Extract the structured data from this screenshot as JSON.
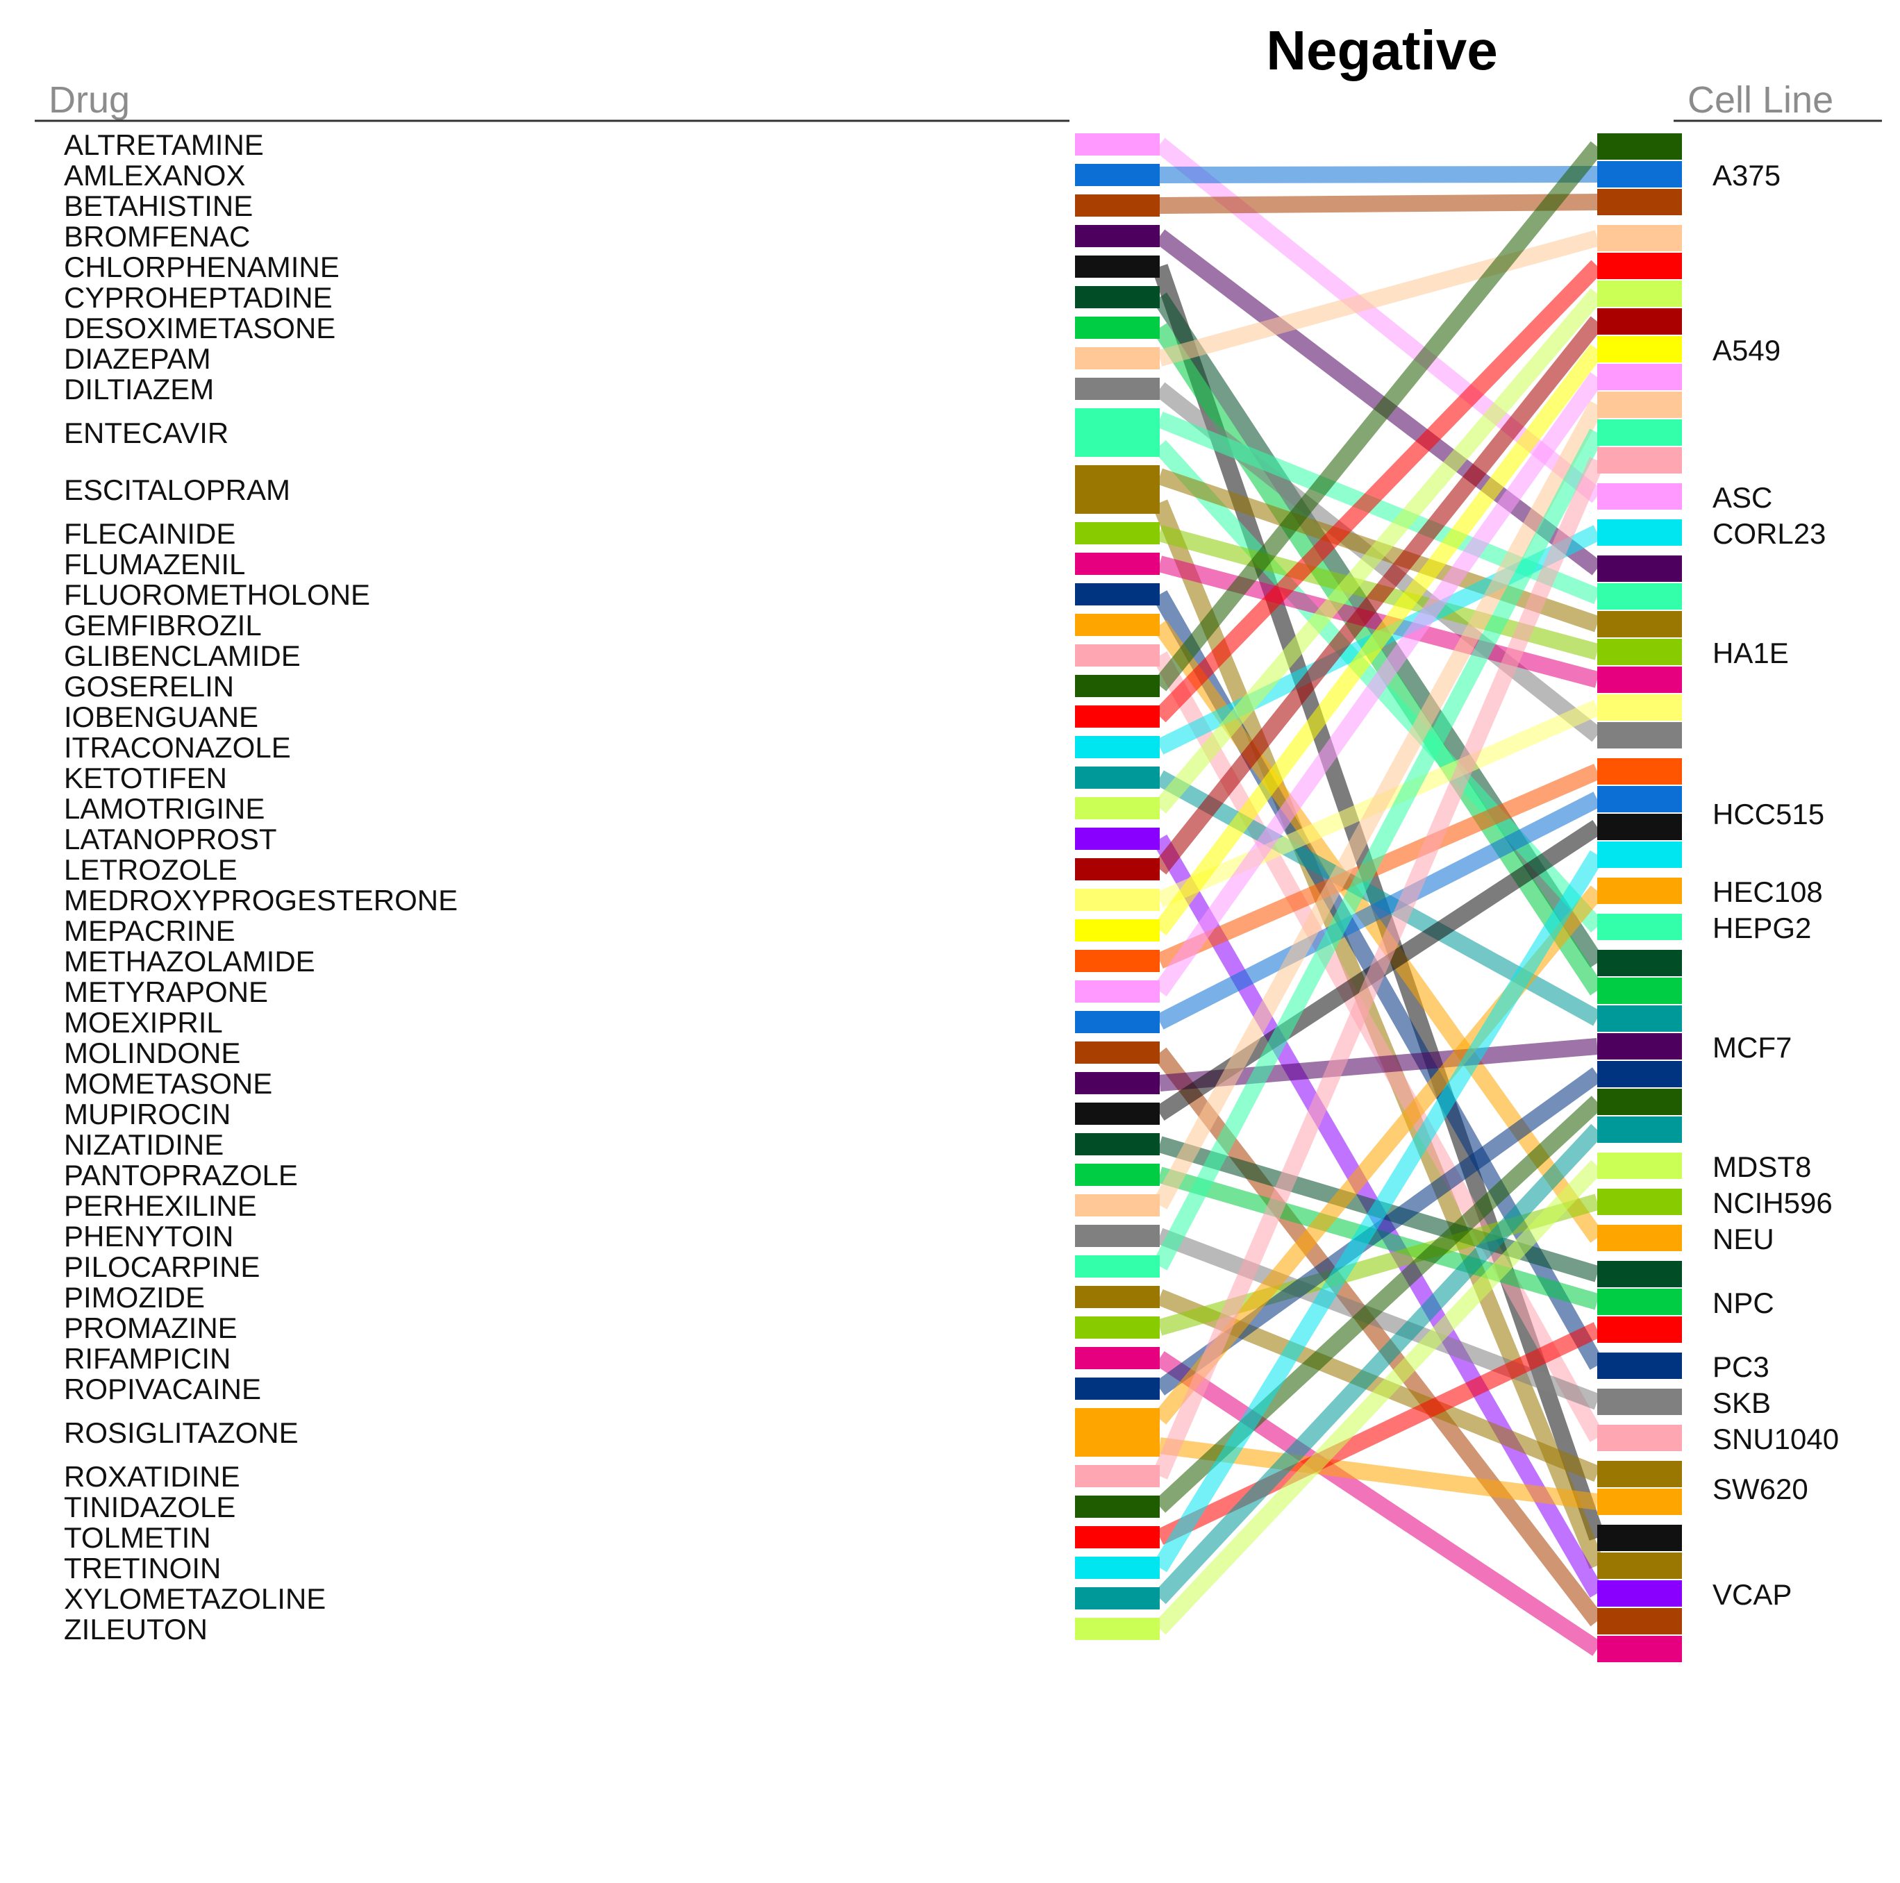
{
  "chart_data": {
    "type": "bipartite",
    "title": "Negative",
    "left_header": "Drug",
    "right_header": "Cell Line",
    "drugs": [
      {
        "name": "ALTRETAMINE",
        "color": "#ff99ff"
      },
      {
        "name": "AMLEXANOX",
        "color": "#0b6fd6"
      },
      {
        "name": "BETAHISTINE",
        "color": "#a93f00"
      },
      {
        "name": "BROMFENAC",
        "color": "#4e005e"
      },
      {
        "name": "CHLORPHENAMINE",
        "color": "#111111"
      },
      {
        "name": "CYPROHEPTADINE",
        "color": "#004d26"
      },
      {
        "name": "DESOXIMETASONE",
        "color": "#00cc44"
      },
      {
        "name": "DIAZEPAM",
        "color": "#ffc896"
      },
      {
        "name": "DILTIAZEM",
        "color": "#808080"
      },
      {
        "name": "ENTECAVIR",
        "color": "#33ffaa"
      },
      {
        "name": "ESCITALOPRAM",
        "color": "#997700"
      },
      {
        "name": "FLECAINIDE",
        "color": "#88cc00"
      },
      {
        "name": "FLUMAZENIL",
        "color": "#e60080"
      },
      {
        "name": "FLUOROMETHOLONE",
        "color": "#003380"
      },
      {
        "name": "GEMFIBROZIL",
        "color": "#ffa500"
      },
      {
        "name": "GLIBENCLAMIDE",
        "color": "#ffa6b3"
      },
      {
        "name": "GOSERELIN",
        "color": "#1f5c00"
      },
      {
        "name": "IOBENGUANE",
        "color": "#ff0000"
      },
      {
        "name": "ITRACONAZOLE",
        "color": "#00e6f0"
      },
      {
        "name": "KETOTIFEN",
        "color": "#009999"
      },
      {
        "name": "LAMOTRIGINE",
        "color": "#ccff55"
      },
      {
        "name": "LATANOPROST",
        "color": "#8a00ff"
      },
      {
        "name": "LETROZOLE",
        "color": "#aa0000"
      },
      {
        "name": "MEDROXYPROGESTERONE",
        "color": "#ffff70"
      },
      {
        "name": "MEPACRINE",
        "color": "#ffff00"
      },
      {
        "name": "METHAZOLAMIDE",
        "color": "#ff5500"
      },
      {
        "name": "METYRAPONE",
        "color": "#ff99ff"
      },
      {
        "name": "MOEXIPRIL",
        "color": "#0b6fd6"
      },
      {
        "name": "MOLINDONE",
        "color": "#a93f00"
      },
      {
        "name": "MOMETASONE",
        "color": "#4e005e"
      },
      {
        "name": "MUPIROCIN",
        "color": "#111111"
      },
      {
        "name": "NIZATIDINE",
        "color": "#004d26"
      },
      {
        "name": "PANTOPRAZOLE",
        "color": "#00cc44"
      },
      {
        "name": "PERHEXILINE",
        "color": "#ffc896"
      },
      {
        "name": "PHENYTOIN",
        "color": "#808080"
      },
      {
        "name": "PILOCARPINE",
        "color": "#33ffaa"
      },
      {
        "name": "PIMOZIDE",
        "color": "#997700"
      },
      {
        "name": "PROMAZINE",
        "color": "#88cc00"
      },
      {
        "name": "RIFAMPICIN",
        "color": "#e60080"
      },
      {
        "name": "ROPIVACAINE",
        "color": "#003380"
      },
      {
        "name": "ROSIGLITAZONE",
        "color": "#ffa500"
      },
      {
        "name": "ROXATIDINE",
        "color": "#ffa6b3"
      },
      {
        "name": "TINIDAZOLE",
        "color": "#1f5c00"
      },
      {
        "name": "TOLMETIN",
        "color": "#ff0000"
      },
      {
        "name": "TRETINOIN",
        "color": "#00e6f0"
      },
      {
        "name": "XYLOMETAZOLINE",
        "color": "#009999"
      },
      {
        "name": "ZILEUTON",
        "color": "#ccff55"
      }
    ],
    "cell_lines": [
      {
        "name": "A375",
        "segments": [
          "GOSERELIN",
          "AMLEXANOX",
          "BETAHISTINE"
        ]
      },
      {
        "name": "A549",
        "segments": [
          "DIAZEPAM",
          "IOBENGUANE",
          "LAMOTRIGINE",
          "LETROZOLE",
          "MEPACRINE",
          "METYRAPONE",
          "PERHEXILINE",
          "PILOCARPINE",
          "ROXATIDINE"
        ]
      },
      {
        "name": "ASC",
        "segments": [
          "ALTRETAMINE"
        ]
      },
      {
        "name": "CORL23",
        "segments": [
          "ITRACONAZOLE"
        ]
      },
      {
        "name": "HA1E",
        "segments": [
          "BROMFENAC",
          "ENTECAVIR",
          "ESCITALOPRAM",
          "FLECAINIDE",
          "FLUMAZENIL",
          "MEDROXYPROGESTERONE",
          "DILTIAZEM"
        ]
      },
      {
        "name": "HCC515",
        "segments": [
          "METHAZOLAMIDE",
          "MOEXIPRIL",
          "MUPIROCIN",
          "TRETINOIN"
        ]
      },
      {
        "name": "HEC108",
        "segments": [
          "ROSIGLITAZONE"
        ]
      },
      {
        "name": "HEPG2",
        "segments": [
          "ENTECAVIR"
        ]
      },
      {
        "name": "MCF7",
        "segments": [
          "CYPROHEPTADINE",
          "DESOXIMETASONE",
          "KETOTIFEN",
          "MOMETASONE",
          "ROPIVACAINE",
          "TINIDAZOLE",
          "XYLOMETAZOLINE"
        ]
      },
      {
        "name": "MDST8",
        "segments": [
          "ZILEUTON"
        ]
      },
      {
        "name": "NCIH596",
        "segments": [
          "PROMAZINE"
        ]
      },
      {
        "name": "NEU",
        "segments": [
          "GEMFIBROZIL"
        ]
      },
      {
        "name": "NPC",
        "segments": [
          "NIZATIDINE",
          "PANTOPRAZOLE",
          "TOLMETIN"
        ]
      },
      {
        "name": "PC3",
        "segments": [
          "FLUOROMETHOLONE"
        ]
      },
      {
        "name": "SKB",
        "segments": [
          "PHENYTOIN"
        ]
      },
      {
        "name": "SNU1040",
        "segments": [
          "GLIBENCLAMIDE"
        ]
      },
      {
        "name": "SW620",
        "segments": [
          "PIMOZIDE",
          "ROSIGLITAZONE"
        ]
      },
      {
        "name": "VCAP",
        "segments": [
          "CHLORPHENAMINE",
          "ESCITALOPRAM",
          "LATANOPROST",
          "MOLINDONE",
          "RIFAMPICIN"
        ]
      }
    ],
    "links": [
      [
        "ALTRETAMINE",
        "ASC"
      ],
      [
        "AMLEXANOX",
        "A375"
      ],
      [
        "BETAHISTINE",
        "A375"
      ],
      [
        "BROMFENAC",
        "HA1E"
      ],
      [
        "CHLORPHENAMINE",
        "VCAP"
      ],
      [
        "CYPROHEPTADINE",
        "MCF7"
      ],
      [
        "DESOXIMETASONE",
        "MCF7"
      ],
      [
        "DIAZEPAM",
        "A549"
      ],
      [
        "DILTIAZEM",
        "HA1E"
      ],
      [
        "ENTECAVIR",
        "HA1E"
      ],
      [
        "ENTECAVIR",
        "HEPG2"
      ],
      [
        "ESCITALOPRAM",
        "HA1E"
      ],
      [
        "ESCITALOPRAM",
        "VCAP"
      ],
      [
        "FLECAINIDE",
        "HA1E"
      ],
      [
        "FLUMAZENIL",
        "HA1E"
      ],
      [
        "FLUOROMETHOLONE",
        "PC3"
      ],
      [
        "GEMFIBROZIL",
        "NEU"
      ],
      [
        "GLIBENCLAMIDE",
        "SNU1040"
      ],
      [
        "GOSERELIN",
        "A375"
      ],
      [
        "IOBENGUANE",
        "A549"
      ],
      [
        "ITRACONAZOLE",
        "CORL23"
      ],
      [
        "KETOTIFEN",
        "MCF7"
      ],
      [
        "LAMOTRIGINE",
        "A549"
      ],
      [
        "LATANOPROST",
        "VCAP"
      ],
      [
        "LETROZOLE",
        "A549"
      ],
      [
        "MEDROXYPROGESTERONE",
        "HA1E"
      ],
      [
        "MEPACRINE",
        "A549"
      ],
      [
        "METHAZOLAMIDE",
        "HCC515"
      ],
      [
        "METYRAPONE",
        "A549"
      ],
      [
        "MOEXIPRIL",
        "HCC515"
      ],
      [
        "MOLINDONE",
        "VCAP"
      ],
      [
        "MOMETASONE",
        "MCF7"
      ],
      [
        "MUPIROCIN",
        "HCC515"
      ],
      [
        "NIZATIDINE",
        "NPC"
      ],
      [
        "PANTOPRAZOLE",
        "NPC"
      ],
      [
        "PERHEXILINE",
        "A549"
      ],
      [
        "PHENYTOIN",
        "SKB"
      ],
      [
        "PILOCARPINE",
        "A549"
      ],
      [
        "PIMOZIDE",
        "SW620"
      ],
      [
        "PROMAZINE",
        "NCIH596"
      ],
      [
        "RIFAMPICIN",
        "VCAP"
      ],
      [
        "ROPIVACAINE",
        "MCF7"
      ],
      [
        "ROSIGLITAZONE",
        "HEC108"
      ],
      [
        "ROSIGLITAZONE",
        "SW620"
      ],
      [
        "ROXATIDINE",
        "A549"
      ],
      [
        "TINIDAZOLE",
        "MCF7"
      ],
      [
        "TOLMETIN",
        "NPC"
      ],
      [
        "TRETINOIN",
        "HCC515"
      ],
      [
        "XYLOMETAZOLINE",
        "MCF7"
      ],
      [
        "ZILEUTON",
        "MDST8"
      ]
    ]
  }
}
